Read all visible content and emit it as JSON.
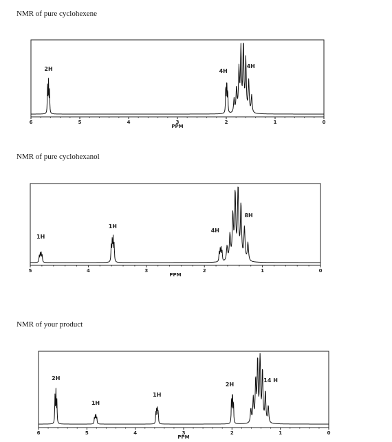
{
  "headings": {
    "cyclohexene": "NMR of pure cyclohexene",
    "cyclohexanol": "NMR of pure cyclohexanol",
    "product": "NMR of your product"
  },
  "chart_data": [
    {
      "type": "line",
      "title": "NMR of pure cyclohexene",
      "xlabel": "PPM",
      "x_reversed": true,
      "xlim": [
        6,
        0
      ],
      "ticks": [
        "6",
        "5",
        "4",
        "3",
        "2",
        "1",
        "0"
      ],
      "peaks": [
        {
          "ppm": 5.64,
          "rel_height": 0.45
        },
        {
          "ppm": 1.99,
          "rel_height": 0.48
        },
        {
          "ppm": 1.68,
          "rel_height": 0.98
        }
      ],
      "annotations": [
        {
          "text": "2H",
          "ppm": 5.64
        },
        {
          "text": "4H",
          "ppm": 1.99
        },
        {
          "text": "4H",
          "ppm": 1.68
        }
      ]
    },
    {
      "type": "line",
      "title": "NMR of pure cyclohexanol",
      "xlabel": "PPM",
      "x_reversed": true,
      "xlim": [
        5,
        0
      ],
      "ticks": [
        "5",
        "4",
        "3",
        "2",
        "1",
        "0"
      ],
      "peaks": [
        {
          "ppm": 4.82,
          "rel_height": 0.12
        },
        {
          "ppm": 3.58,
          "rel_height": 0.3
        },
        {
          "ppm": 1.72,
          "rel_height": 0.17
        },
        {
          "ppm": 1.45,
          "rel_height": 0.96
        }
      ],
      "annotations": [
        {
          "text": "1H",
          "ppm": 4.82
        },
        {
          "text": "1H",
          "ppm": 3.58
        },
        {
          "text": "4H",
          "ppm": 1.72
        },
        {
          "text": "8H",
          "ppm": 1.45
        }
      ]
    },
    {
      "type": "line",
      "title": "NMR of your product",
      "xlabel": "PPM",
      "x_reversed": true,
      "xlim": [
        6,
        0
      ],
      "ticks": [
        "6",
        "5",
        "4",
        "3",
        "2",
        "1",
        "0"
      ],
      "peaks": [
        {
          "ppm": 5.64,
          "rel_height": 0.45
        },
        {
          "ppm": 4.82,
          "rel_height": 0.12
        },
        {
          "ppm": 3.55,
          "rel_height": 0.22
        },
        {
          "ppm": 1.99,
          "rel_height": 0.46
        },
        {
          "ppm": 1.45,
          "rel_height": 0.97
        }
      ],
      "annotations": [
        {
          "text": "2H",
          "ppm": 5.64
        },
        {
          "text": "1H",
          "ppm": 4.82
        },
        {
          "text": "1H",
          "ppm": 3.55
        },
        {
          "text": "2H",
          "ppm": 1.99
        },
        {
          "text": "14 H",
          "ppm": 1.2
        }
      ]
    }
  ]
}
